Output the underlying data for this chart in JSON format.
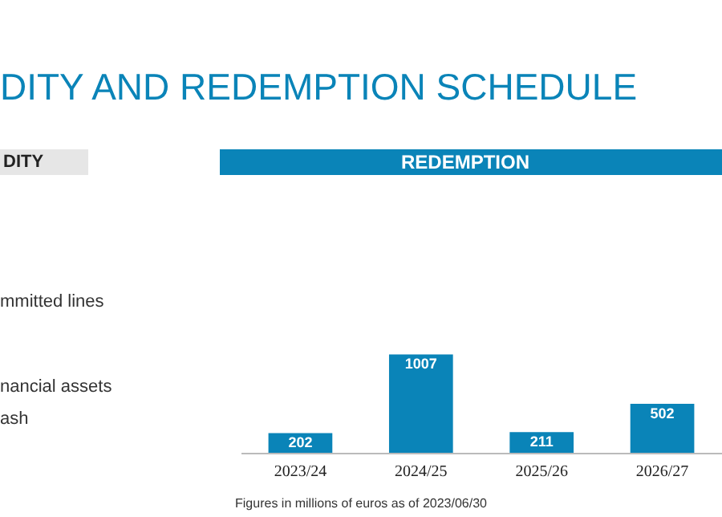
{
  "chart_data": {
    "type": "bar",
    "title": "DITY AND REDEMPTION SCHEDULE",
    "categories": [
      "2023/24",
      "2024/25",
      "2025/26",
      "2026/27"
    ],
    "values": [
      202,
      1007,
      211,
      502
    ],
    "color": "#0a84b8",
    "data_labels": true,
    "grid": false,
    "tick_labels": "x",
    "annotations": [
      "DITY",
      "REDEMPTION",
      "mmitted lines",
      "nancial assets",
      "ash",
      "Figures in millions of euros as of 2023/06/30"
    ]
  }
}
